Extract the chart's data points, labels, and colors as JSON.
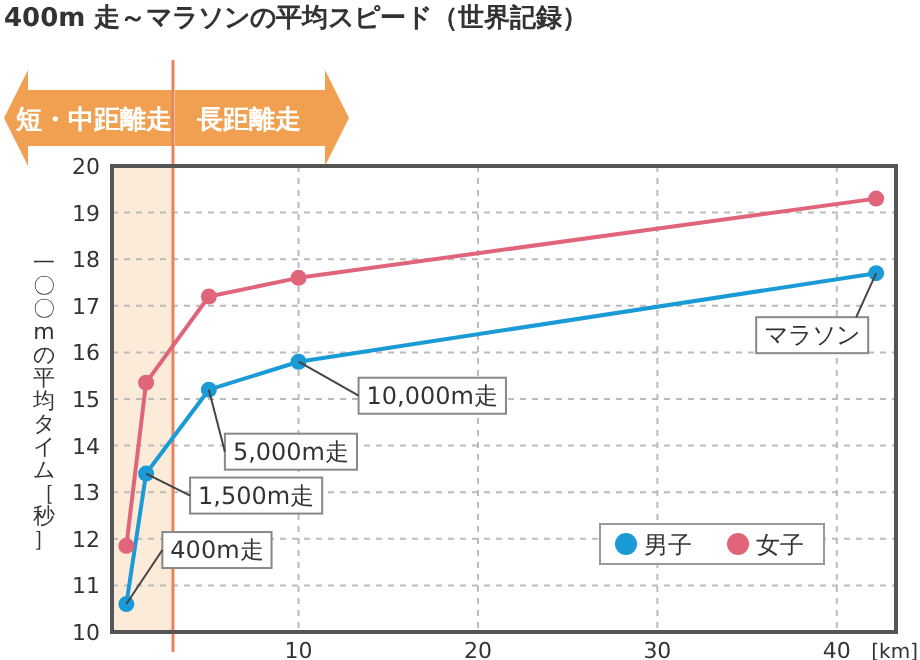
{
  "chart_data": {
    "type": "line",
    "title": "400m 走～マラソンの平均スピード（世界記録）",
    "xlabel": "[km]",
    "ylabel": "一〇〇mの平均タイム［秒］",
    "x": [
      0.4,
      1.5,
      5,
      10,
      42.195
    ],
    "series": [
      {
        "name": "男子",
        "color": "#1a9ad6",
        "values": [
          10.6,
          13.4,
          15.2,
          15.8,
          17.7
        ]
      },
      {
        "name": "女子",
        "color": "#e0657a",
        "values": [
          11.85,
          15.35,
          17.2,
          17.6,
          19.3
        ]
      }
    ],
    "xlim": [
      -0.4,
      43.3
    ],
    "ylim": [
      10,
      20
    ],
    "xticks": [
      10,
      20,
      30,
      40
    ],
    "yticks": [
      10,
      11,
      12,
      13,
      14,
      15,
      16,
      17,
      18,
      19,
      20
    ],
    "grid": true,
    "marker": "circle",
    "legend": "bottom right",
    "ref_lines": [
      {
        "axis": "x",
        "value": 3,
        "color": "#e8845a"
      }
    ],
    "bands": [
      {
        "axis": "x",
        "from": -0.4,
        "to": 3,
        "label": "短・中距離走",
        "color": "#fcebd9"
      }
    ],
    "annotations": [
      "長距離走",
      {
        "text": "400m走",
        "x": 0.4,
        "y": 10.6
      },
      {
        "text": "1,500m走",
        "x": 1.5,
        "y": 13.4
      },
      {
        "text": "5,000m走",
        "x": 5,
        "y": 15.2
      },
      {
        "text": "10,000m走",
        "x": 10,
        "y": 15.8
      },
      {
        "text": "マラソン",
        "x": 42.195,
        "y": 17.7
      }
    ]
  }
}
